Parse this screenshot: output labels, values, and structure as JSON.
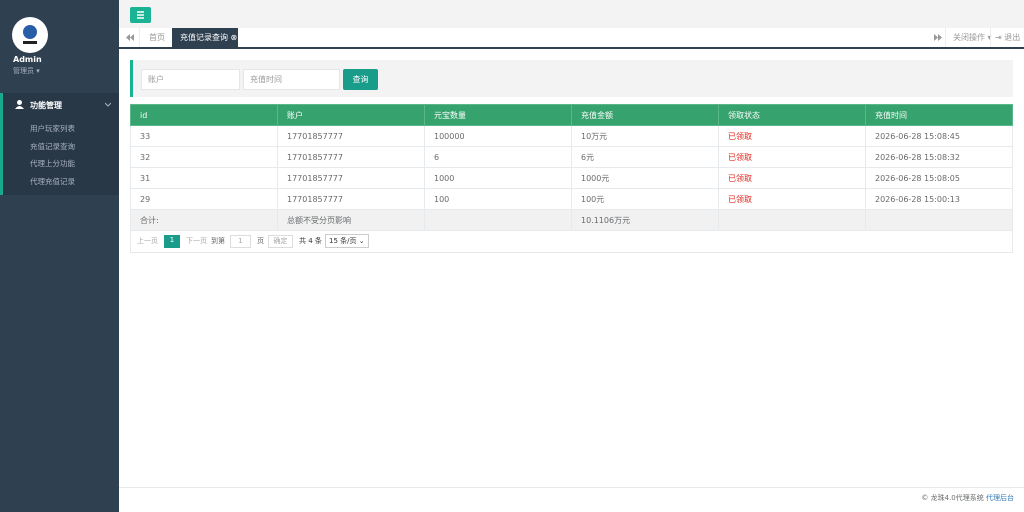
{
  "sidebar": {
    "user": "Admin",
    "role": "管理员",
    "menu": {
      "title": "功能管理",
      "items": [
        "用户玩家列表",
        "充值记录查询",
        "代理上分功能",
        "代理充值记录"
      ]
    }
  },
  "tabs": {
    "home": "首页",
    "active": "充值记录查询",
    "close_ops": "关闭操作",
    "logout": "退出"
  },
  "search": {
    "account_placeholder": "账户",
    "time_placeholder": "充值时间",
    "button": "查询"
  },
  "table": {
    "columns": [
      "id",
      "账户",
      "元宝数量",
      "充值金额",
      "领取状态",
      "充值时间"
    ],
    "rows": [
      [
        "33",
        "17701857777",
        "100000",
        "10万元",
        "已领取",
        "2026-06-28 15:08:45"
      ],
      [
        "32",
        "17701857777",
        "6",
        "6元",
        "已领取",
        "2026-06-28 15:08:32"
      ],
      [
        "31",
        "17701857777",
        "1000",
        "1000元",
        "已领取",
        "2026-06-28 15:08:05"
      ],
      [
        "29",
        "17701857777",
        "100",
        "100元",
        "已领取",
        "2026-06-28 15:00:13"
      ]
    ],
    "total": {
      "label": "合计:",
      "note": "总额不受分页影响",
      "amount": "10.1106万元"
    }
  },
  "pagination": {
    "prev": "上一页",
    "page": "1",
    "next": "下一页",
    "goto": "到第",
    "input": "1",
    "unit": "页",
    "confirm": "确定",
    "total": "共 4 条",
    "page_size": "15 条/页"
  },
  "footer": {
    "text": "© 龙珠4.0代理系统",
    "link": "代理后台"
  }
}
